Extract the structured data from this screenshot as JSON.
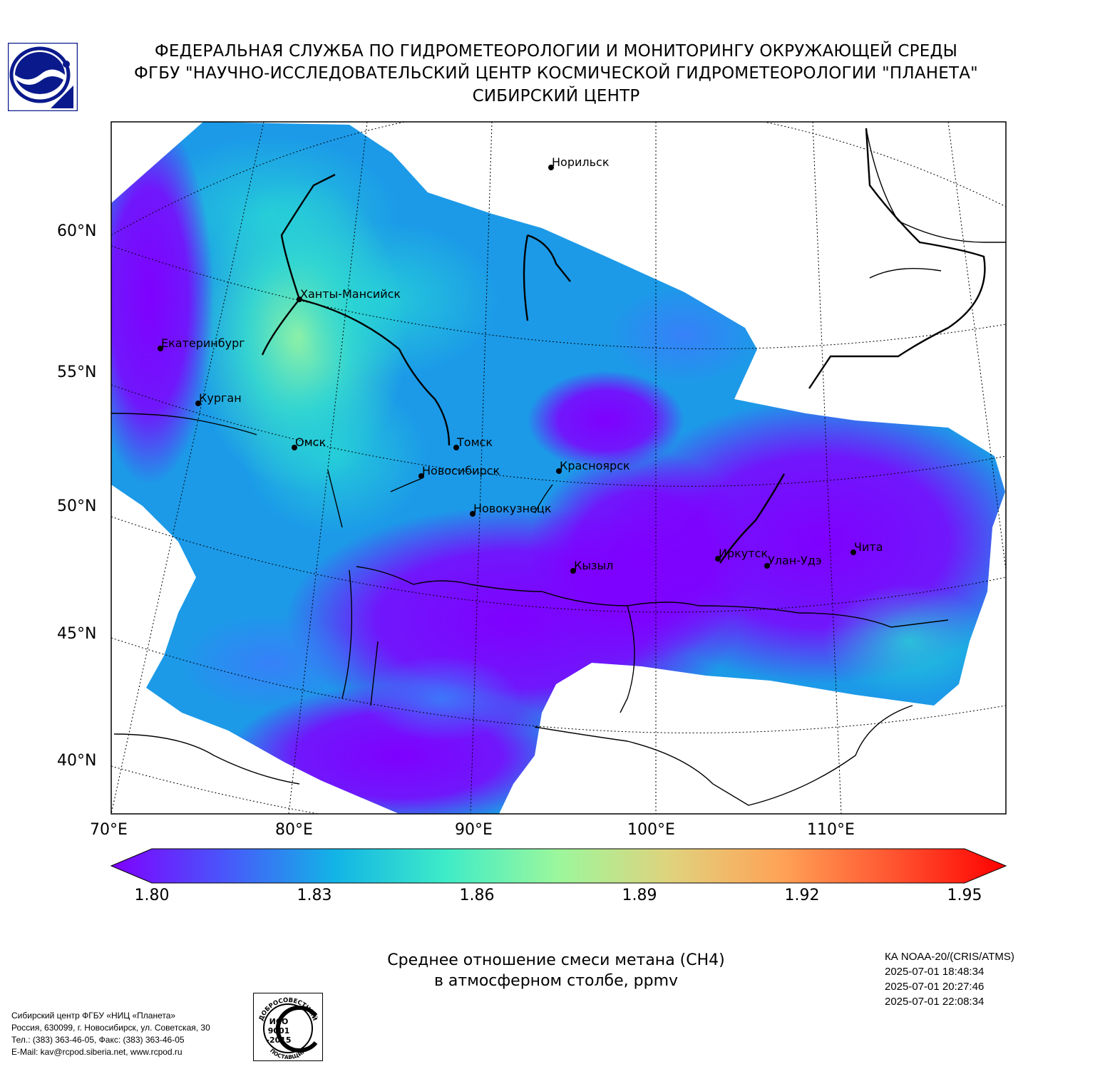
{
  "header": {
    "line1": "ФЕДЕРАЛЬНАЯ СЛУЖБА ПО ГИДРОМЕТЕОРОЛОГИИ И МОНИТОРИНГУ ОКРУЖАЮЩЕЙ СРЕДЫ",
    "line2": "ФГБУ \"НАУЧНО-ИССЛЕДОВАТЕЛЬСКИЙ ЦЕНТР КОСМИЧЕСКОЙ ГИДРОМЕТЕОРОЛОГИИ \"ПЛАНЕТА\"",
    "line3": "СИБИРСКИЙ ЦЕНТР"
  },
  "map": {
    "lat_labels": [
      "60°N",
      "55°N",
      "50°N",
      "45°N",
      "40°N"
    ],
    "lon_labels": [
      "70°E",
      "80°E",
      "90°E",
      "100°E",
      "110°E"
    ],
    "cities": [
      {
        "name": "Норильск"
      },
      {
        "name": "Ханты-Мансийск"
      },
      {
        "name": "Екатеринбург"
      },
      {
        "name": "Курган"
      },
      {
        "name": "Омск"
      },
      {
        "name": "Томск"
      },
      {
        "name": "Новосибирск"
      },
      {
        "name": "Красноярск"
      },
      {
        "name": "Новокузнецк"
      },
      {
        "name": "Кызыл"
      },
      {
        "name": "Иркутск"
      },
      {
        "name": "Улан-Удэ"
      },
      {
        "name": "Чита"
      }
    ]
  },
  "colorbar": {
    "ticks": [
      "1.80",
      "1.83",
      "1.86",
      "1.89",
      "1.92",
      "1.95"
    ],
    "colors": [
      "#7f00ff",
      "#4a55fb",
      "#12b4e6",
      "#3fecc7",
      "#9cf79c",
      "#e0d27d",
      "#ffa256",
      "#ff5430",
      "#ff0000"
    ]
  },
  "caption": {
    "line1": "Среднее отношение смеси метана (CH4)",
    "line2": "в атмосферном столбе, ppmv"
  },
  "satellite": {
    "name": "КА NOAA-20/(CRIS/ATMS)",
    "times": [
      "2025-07-01 18:48:34",
      "2025-07-01 20:27:46",
      "2025-07-01 22:08:34"
    ]
  },
  "contacts": {
    "line1": "Сибирский центр ФГБУ «НИЦ «Планета»",
    "line2": "Россия, 630099, г. Новосибирск, ул. Советская, 30",
    "line3": "Тел.: (383) 363-46-05, Факс: (383) 363-46-05",
    "line4": "E-Mail: kav@rcpod.siberia.net, www.rcpod.ru"
  },
  "iso_badge": {
    "top": "ДОБРОСОВЕСТНЫЙ",
    "center1": "ИСО",
    "center2": "9001",
    "center3": "-2015",
    "bottom": "ПОСТАВЩИК"
  }
}
